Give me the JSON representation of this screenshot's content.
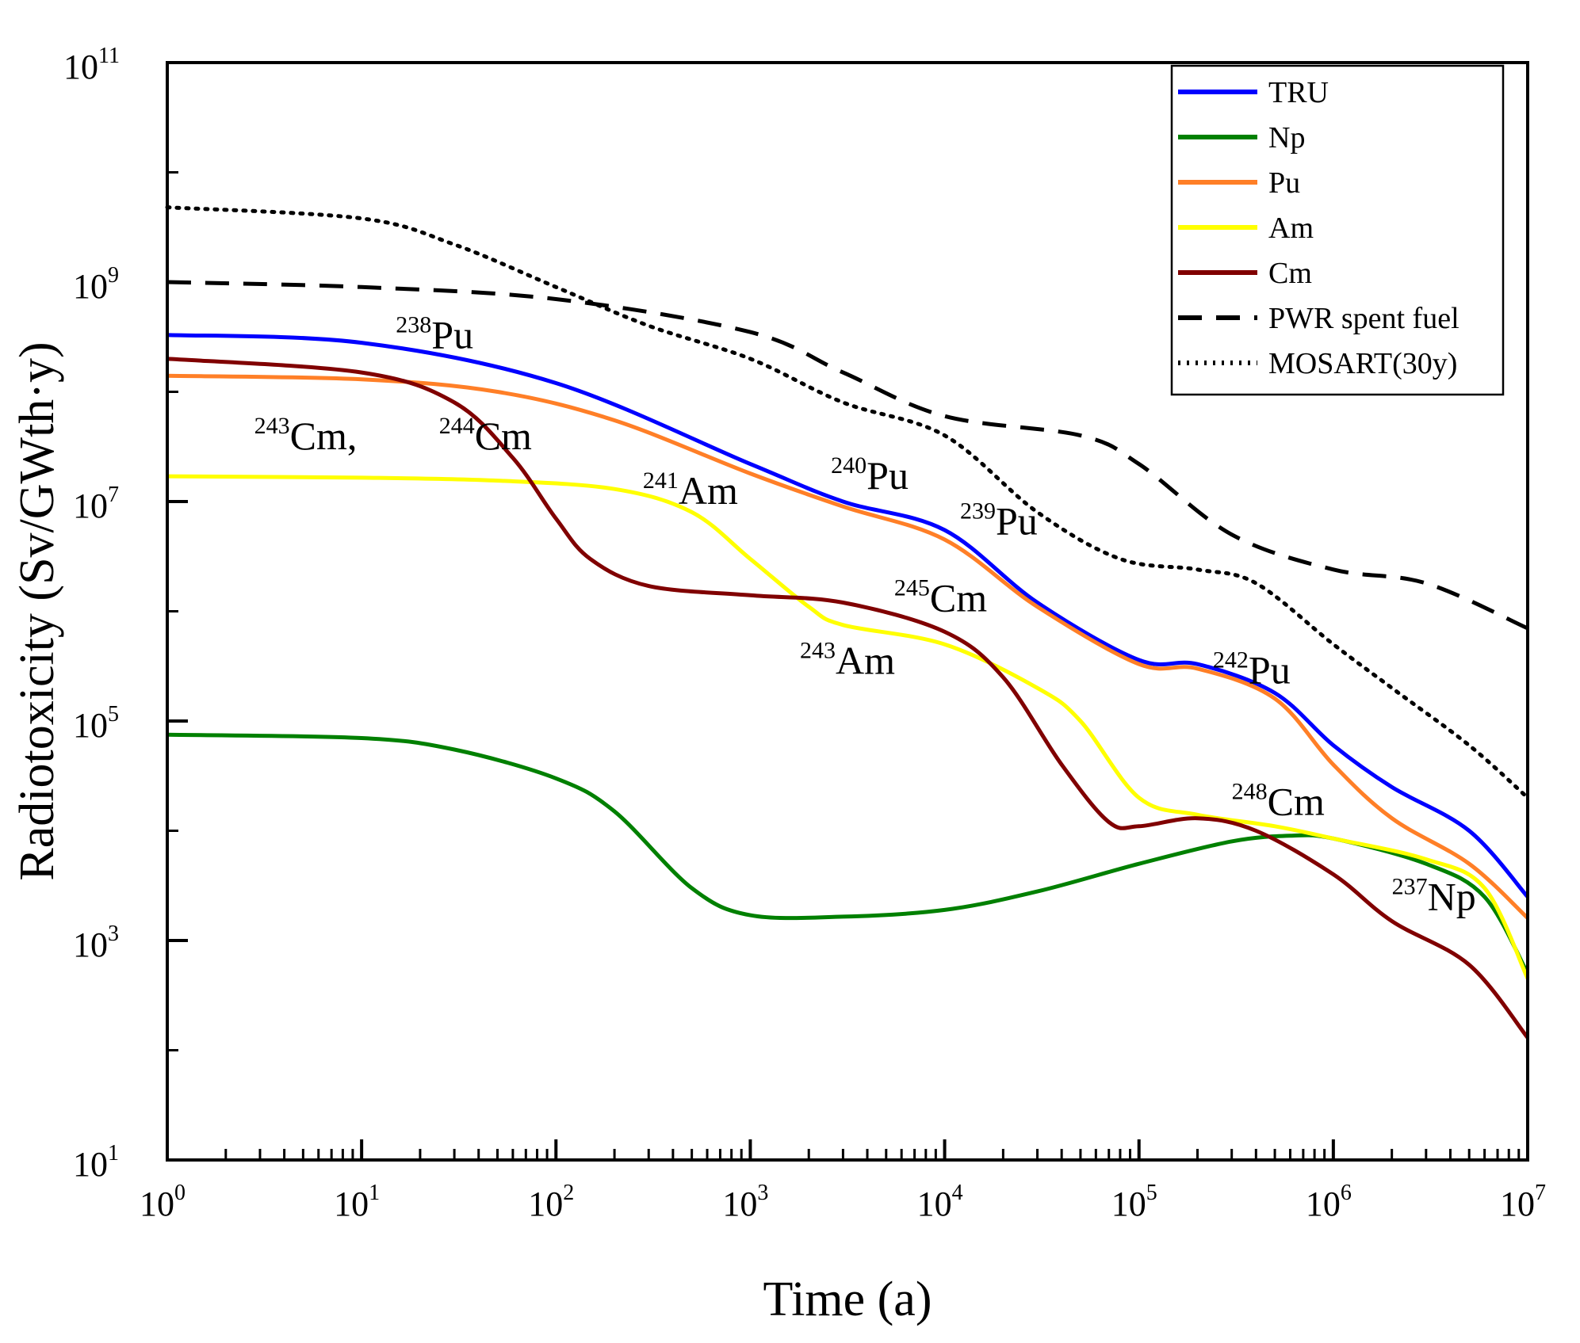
{
  "chart_data": {
    "type": "line",
    "xscale": "log",
    "yscale": "log",
    "xlim": [
      1,
      10000000
    ],
    "ylim": [
      10,
      100000000000
    ],
    "xlabel": "Time (a)",
    "ylabel": "Radiotoxicity (Sv/GWth·y)",
    "x_ticks": [
      {
        "base": "10",
        "exp": "0"
      },
      {
        "base": "10",
        "exp": "1"
      },
      {
        "base": "10",
        "exp": "2"
      },
      {
        "base": "10",
        "exp": "3"
      },
      {
        "base": "10",
        "exp": "4"
      },
      {
        "base": "10",
        "exp": "5"
      },
      {
        "base": "10",
        "exp": "6"
      },
      {
        "base": "10",
        "exp": "7"
      }
    ],
    "y_ticks": [
      {
        "base": "10",
        "exp": "1"
      },
      {
        "base": "10",
        "exp": "3"
      },
      {
        "base": "10",
        "exp": "5"
      },
      {
        "base": "10",
        "exp": "7"
      },
      {
        "base": "10",
        "exp": "9"
      },
      {
        "base": "10",
        "exp": "11"
      }
    ],
    "legend_position": "top-right",
    "series": [
      {
        "name": "TRU",
        "color": "#0000ff",
        "style": "solid",
        "points": [
          [
            1,
            330000000
          ],
          [
            10,
            280000000
          ],
          [
            100,
            120000000
          ],
          [
            1000,
            22000000
          ],
          [
            3000,
            10000000
          ],
          [
            10000,
            5500000
          ],
          [
            30000,
            1200000
          ],
          [
            100000,
            360000
          ],
          [
            200000,
            330000
          ],
          [
            500000,
            180000
          ],
          [
            1000000,
            60000
          ],
          [
            2000000,
            25000
          ],
          [
            5000000,
            10000
          ],
          [
            10000000,
            2500
          ]
        ]
      },
      {
        "name": "Np",
        "color": "#008000",
        "style": "solid",
        "points": [
          [
            1,
            75000
          ],
          [
            10,
            70000
          ],
          [
            30,
            55000
          ],
          [
            100,
            30000
          ],
          [
            200,
            15000
          ],
          [
            500,
            3000
          ],
          [
            1000,
            1700
          ],
          [
            3000,
            1650
          ],
          [
            10000,
            1900
          ],
          [
            30000,
            2800
          ],
          [
            100000,
            5000
          ],
          [
            300000,
            8000
          ],
          [
            600000,
            9000
          ],
          [
            1000000,
            8500
          ],
          [
            3000000,
            5000
          ],
          [
            6000000,
            2500
          ],
          [
            10000000,
            500
          ]
        ]
      },
      {
        "name": "Pu",
        "color": "#ff7f27",
        "style": "solid",
        "points": [
          [
            1,
            140000000
          ],
          [
            10,
            130000000
          ],
          [
            50,
            100000000
          ],
          [
            200,
            55000000
          ],
          [
            1000,
            18000000
          ],
          [
            3000,
            9000000
          ],
          [
            10000,
            4500000
          ],
          [
            30000,
            1100000
          ],
          [
            100000,
            330000
          ],
          [
            200000,
            300000
          ],
          [
            500000,
            160000
          ],
          [
            1000000,
            40000
          ],
          [
            2000000,
            13000
          ],
          [
            5000000,
            5000
          ],
          [
            10000000,
            1600
          ]
        ]
      },
      {
        "name": "Am",
        "color": "#ffff00",
        "style": "solid",
        "points": [
          [
            1,
            17000000
          ],
          [
            10,
            16500000
          ],
          [
            50,
            15500000
          ],
          [
            200,
            13000000
          ],
          [
            500,
            8000000
          ],
          [
            1000,
            3000000
          ],
          [
            2000,
            1100000
          ],
          [
            3000,
            750000
          ],
          [
            10000,
            500000
          ],
          [
            30000,
            200000
          ],
          [
            50000,
            100000
          ],
          [
            100000,
            20000
          ],
          [
            200000,
            14000
          ],
          [
            500000,
            11000
          ],
          [
            1000000,
            8500
          ],
          [
            3000000,
            5500
          ],
          [
            6000000,
            3000
          ],
          [
            10000000,
            450
          ]
        ]
      },
      {
        "name": "Cm",
        "color": "#800000",
        "style": "solid",
        "points": [
          [
            1,
            200000000
          ],
          [
            10,
            150000000
          ],
          [
            30,
            80000000
          ],
          [
            60,
            25000000
          ],
          [
            100,
            7000000
          ],
          [
            150,
            3000000
          ],
          [
            300,
            1700000
          ],
          [
            1000,
            1400000
          ],
          [
            3000,
            1200000
          ],
          [
            10000,
            650000
          ],
          [
            20000,
            250000
          ],
          [
            40000,
            40000
          ],
          [
            70000,
            12000
          ],
          [
            100000,
            11000
          ],
          [
            200000,
            13000
          ],
          [
            400000,
            10000
          ],
          [
            1000000,
            4000
          ],
          [
            2000000,
            1500
          ],
          [
            5000000,
            600
          ],
          [
            10000000,
            130
          ]
        ]
      },
      {
        "name": "PWR spent fuel",
        "color": "#000000",
        "style": "dashed",
        "points": [
          [
            1,
            1000000000
          ],
          [
            10,
            900000000
          ],
          [
            100,
            700000000
          ],
          [
            1000,
            350000000
          ],
          [
            3000,
            150000000
          ],
          [
            10000,
            60000000
          ],
          [
            50000,
            40000000
          ],
          [
            100000,
            22000000
          ],
          [
            300000,
            5000000
          ],
          [
            1000000,
            2400000
          ],
          [
            3000000,
            1800000
          ],
          [
            10000000,
            700000
          ]
        ]
      },
      {
        "name": "MOSART(30y)",
        "color": "#000000",
        "style": "dotted",
        "points": [
          [
            1,
            4800000000
          ],
          [
            10,
            3800000000
          ],
          [
            30,
            2200000000
          ],
          [
            100,
            900000000
          ],
          [
            300,
            400000000
          ],
          [
            1000,
            200000000
          ],
          [
            3000,
            80000000
          ],
          [
            10000,
            40000000
          ],
          [
            30000,
            8000000
          ],
          [
            80000,
            3000000
          ],
          [
            200000,
            2400000
          ],
          [
            400000,
            1800000
          ],
          [
            1000000,
            500000
          ],
          [
            2000000,
            200000
          ],
          [
            5000000,
            60000
          ],
          [
            10000000,
            20000
          ]
        ]
      }
    ],
    "annotations": [
      {
        "sup": "238",
        "label": "Pu",
        "x": 15,
        "y": 250000000
      },
      {
        "sup": "243",
        "label": "Cm,",
        "x": 2.8,
        "y": 30000000
      },
      {
        "sup": "244",
        "label": "Cm",
        "x": 25,
        "y": 30000000
      },
      {
        "sup": "241",
        "label": "Am",
        "x": 280,
        "y": 9500000
      },
      {
        "sup": "240",
        "label": "Pu",
        "x": 2600,
        "y": 13000000
      },
      {
        "sup": "239",
        "label": "Pu",
        "x": 12000,
        "y": 5000000
      },
      {
        "sup": "245",
        "label": "Cm",
        "x": 5500,
        "y": 1000000
      },
      {
        "sup": "243",
        "label": "Am",
        "x": 1800,
        "y": 270000
      },
      {
        "sup": "242",
        "label": "Pu",
        "x": 240000,
        "y": 220000
      },
      {
        "sup": "248",
        "label": "Cm",
        "x": 300000,
        "y": 14000
      },
      {
        "sup": "237",
        "label": "Np",
        "x": 2000000,
        "y": 1900
      }
    ]
  }
}
